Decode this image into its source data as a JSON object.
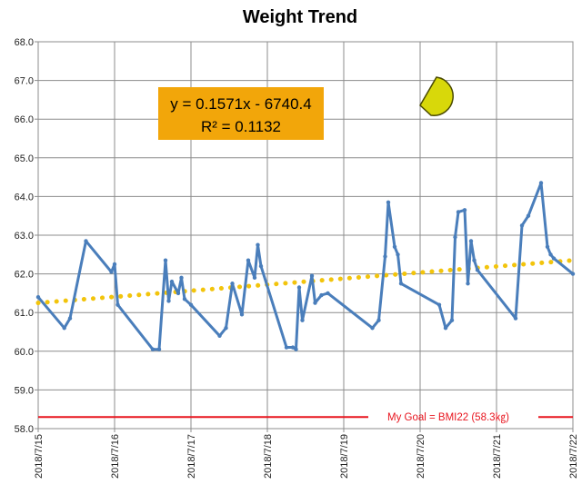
{
  "chart_data": {
    "type": "line",
    "title": "Weight Trend",
    "xlabel": "",
    "ylabel": "",
    "ylim": [
      58.0,
      68.0
    ],
    "xlim": [
      "2018/7/15",
      "2018/7/22"
    ],
    "y_ticks": [
      "58.0",
      "59.0",
      "60.0",
      "61.0",
      "62.0",
      "63.0",
      "64.0",
      "65.0",
      "66.0",
      "67.0",
      "68.0"
    ],
    "x_ticks": [
      "2018/7/15",
      "2018/7/16",
      "2018/7/17",
      "2018/7/18",
      "2018/7/19",
      "2018/7/20",
      "2018/7/21",
      "2018/7/22"
    ],
    "grid": true,
    "series": [
      {
        "color": "#4a7ebb",
        "x": [
          "2018/7/15 00:00",
          "2018/7/15 08:12",
          "2018/7/15 10:00",
          "2018/7/15 15:00",
          "2018/7/15 23:00",
          "2018/7/16 00:00",
          "2018/7/16 01:00",
          "2018/7/16 12:00",
          "2018/7/16 14:00",
          "2018/7/16 16:00",
          "2018/7/16 17:00",
          "2018/7/16 18:00",
          "2018/7/16 20:00",
          "2018/7/16 21:00",
          "2018/7/16 22:00",
          "2018/7/17 00:00",
          "2018/7/17 09:00",
          "2018/7/17 11:00",
          "2018/7/17 13:00",
          "2018/7/17 16:00",
          "2018/7/17 18:00",
          "2018/7/17 20:00",
          "2018/7/17 21:00",
          "2018/7/17 22:00",
          "2018/7/18 06:00",
          "2018/7/18 08:00",
          "2018/7/18 09:00",
          "2018/7/18 10:00",
          "2018/7/18 11:00",
          "2018/7/18 14:00",
          "2018/7/18 15:00",
          "2018/7/18 17:00",
          "2018/7/18 19:00",
          "2018/7/19 09:00",
          "2018/7/19 11:00",
          "2018/7/19 13:00",
          "2018/7/19 14:00",
          "2018/7/19 16:00",
          "2018/7/19 17:00",
          "2018/7/19 18:00",
          "2018/7/20 06:00",
          "2018/7/20 08:00",
          "2018/7/20 10:00",
          "2018/7/20 11:00",
          "2018/7/20 12:00",
          "2018/7/20 14:00",
          "2018/7/20 15:00",
          "2018/7/20 16:00",
          "2018/7/20 17:00",
          "2018/7/20 18:00",
          "2018/7/21 06:00",
          "2018/7/21 08:00",
          "2018/7/21 10:00",
          "2018/7/21 14:00",
          "2018/7/21 16:00",
          "2018/7/21 17:00",
          "2018/7/21 18:00",
          "2018/7/22 00:00"
        ],
        "y": [
          61.4,
          60.6,
          60.85,
          62.85,
          62.05,
          62.25,
          61.2,
          60.05,
          60.05,
          62.35,
          61.3,
          61.8,
          61.5,
          61.9,
          61.35,
          61.2,
          60.4,
          60.6,
          61.75,
          60.95,
          62.35,
          61.9,
          62.75,
          62.2,
          60.1,
          60.1,
          60.05,
          61.65,
          60.8,
          61.95,
          61.25,
          61.45,
          61.5,
          60.6,
          60.8,
          62.45,
          63.85,
          62.7,
          62.5,
          61.75,
          61.2,
          60.6,
          60.8,
          62.95,
          63.6,
          63.65,
          61.75,
          62.85,
          62.35,
          62.1,
          60.85,
          63.25,
          63.5,
          64.35,
          62.7,
          62.5,
          62.4,
          62.0
        ]
      }
    ],
    "trendline": {
      "style": "dotted",
      "color": "#f2c40c",
      "start": [
        "2018/7/15",
        61.25
      ],
      "end": [
        "2018/7/22",
        62.35
      ],
      "label": {
        "equation": "y = 0.1571x - 6740.4",
        "r2": "R² = 0.1132",
        "background": "#f2a60a"
      }
    },
    "goal": {
      "value": 58.3,
      "label": "My Goal = BMI22 (58.3㎏)",
      "color": "#e8151f"
    }
  }
}
